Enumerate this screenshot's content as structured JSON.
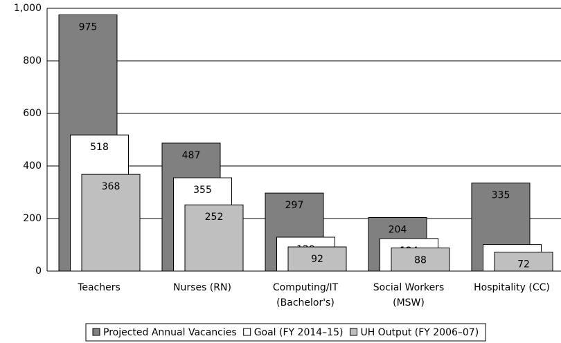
{
  "chart_data": {
    "type": "bar",
    "categories": [
      "Teachers",
      "Nurses (RN)",
      "Computing/IT (Bachelor's)",
      "Social Workers (MSW)",
      "Hospitality (CC)"
    ],
    "series": [
      {
        "name": "Projected Annual Vacancies",
        "color": "#808080",
        "values": [
          975,
          487,
          297,
          204,
          335
        ]
      },
      {
        "name": "Goal (FY 2014–15)",
        "color": "#ffffff",
        "values": [
          518,
          355,
          129,
          124,
          101
        ]
      },
      {
        "name": "UH Output (FY 2006–07)",
        "color": "#bfbfbf",
        "values": [
          368,
          252,
          92,
          88,
          72
        ]
      }
    ],
    "ylim": [
      0,
      1000
    ],
    "yticks": [
      0,
      200,
      400,
      600,
      800,
      {
        "value": 1000,
        "label": "1,000"
      }
    ],
    "grid": true,
    "legend": "bottom"
  }
}
